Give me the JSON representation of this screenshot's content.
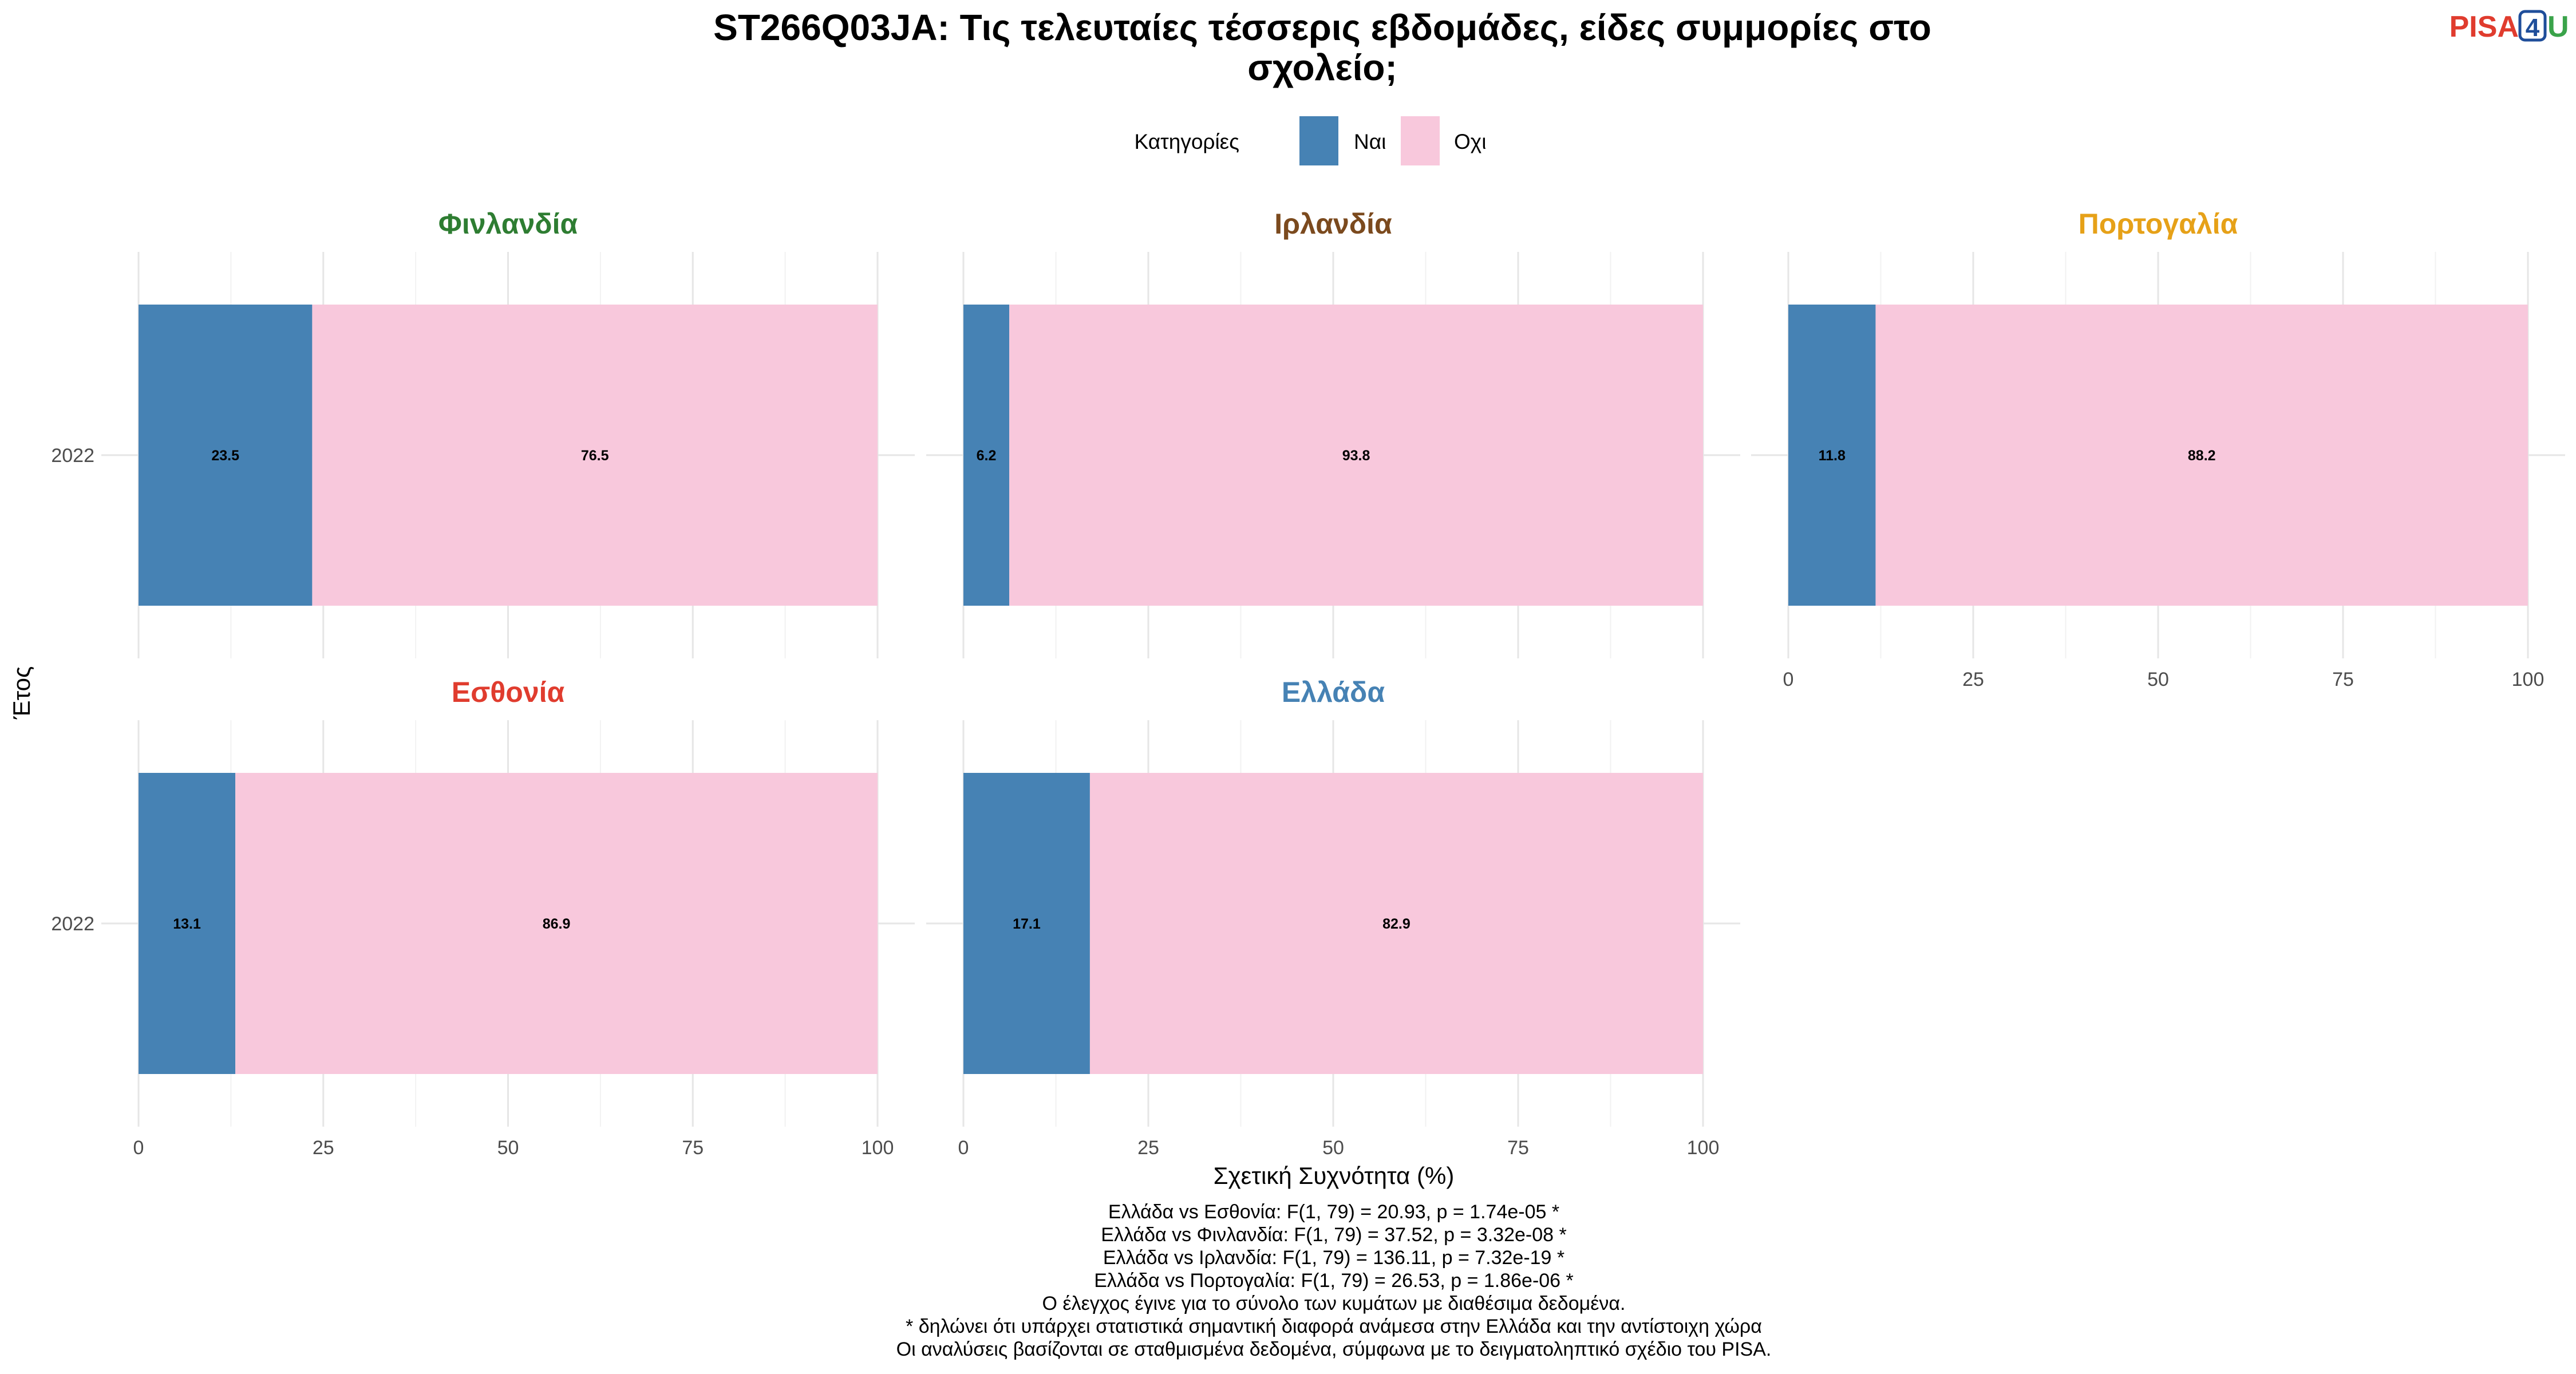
{
  "chart_data": {
    "type": "bar",
    "orientation": "horizontal",
    "stacked": true,
    "title_lines": [
      "ST266Q03JA: Τις τελευταίες τέσσερις εβδομάδες, είδες συμμορίες στο",
      "σχολείο;"
    ],
    "legend": {
      "title": "Κατηγορίες",
      "position": "top",
      "items": [
        {
          "label": "Ναι",
          "color": "#4682B4"
        },
        {
          "label": "Οχι",
          "color": "#F8C8DC"
        }
      ]
    },
    "xlabel": "Σχετική Συχνότητα (%)",
    "ylabel": "Έτος",
    "xlim": [
      0,
      100
    ],
    "xticks": [
      "0",
      "25",
      "50",
      "75",
      "100"
    ],
    "grid": true,
    "facets": [
      {
        "name": "Φινλανδία",
        "color": "#2E7D32",
        "category": "2022",
        "values": [
          23.5,
          76.5
        ],
        "labels": [
          "23.5",
          "76.5"
        ]
      },
      {
        "name": "Ιρλανδία",
        "color": "#7B4A1E",
        "category": "2022",
        "values": [
          6.2,
          93.8
        ],
        "labels": [
          "6.2",
          "93.8"
        ]
      },
      {
        "name": "Πορτογαλία",
        "color": "#E6A118",
        "category": "2022",
        "values": [
          11.8,
          88.2
        ],
        "labels": [
          "11.8",
          "88.2"
        ]
      },
      {
        "name": "Εσθονία",
        "color": "#E03C2E",
        "category": "2022",
        "values": [
          13.1,
          86.9
        ],
        "labels": [
          "13.1",
          "86.9"
        ]
      },
      {
        "name": "Ελλάδα",
        "color": "#4682B4",
        "category": "2022",
        "values": [
          17.1,
          82.9
        ],
        "labels": [
          "17.1",
          "82.9"
        ]
      }
    ],
    "notes": [
      "Ελλάδα vs Εσθονία: F(1, 79) = 20.93, p = 1.74e-05 *",
      "Ελλάδα vs Φινλανδία: F(1, 79) = 37.52, p = 3.32e-08 *",
      "Ελλάδα vs Ιρλανδία: F(1, 79) = 136.11, p = 7.32e-19 *",
      "Ελλάδα vs Πορτογαλία: F(1, 79) = 26.53, p = 1.86e-06 *",
      "Ο έλεγχος έγινε για το σύνολο των κυμάτων με διαθέσιμα δεδομένα.",
      "* δηλώνει ότι υπάρχει στατιστικά σημαντική διαφορά ανάμεσα στην Ελλάδα και την αντίστοιχη χώρα",
      "Οι αναλύσεις βασίζονται σε σταθμισμένα δεδομένα, σύμφωνα με το δειγματοληπτικό σχέδιο του PISA."
    ]
  },
  "logo": {
    "part1": "PISA",
    "part2": "4",
    "part3": "U",
    "colors": [
      "#E03C2E",
      "#1F4E9A",
      "#3AA34A"
    ]
  }
}
